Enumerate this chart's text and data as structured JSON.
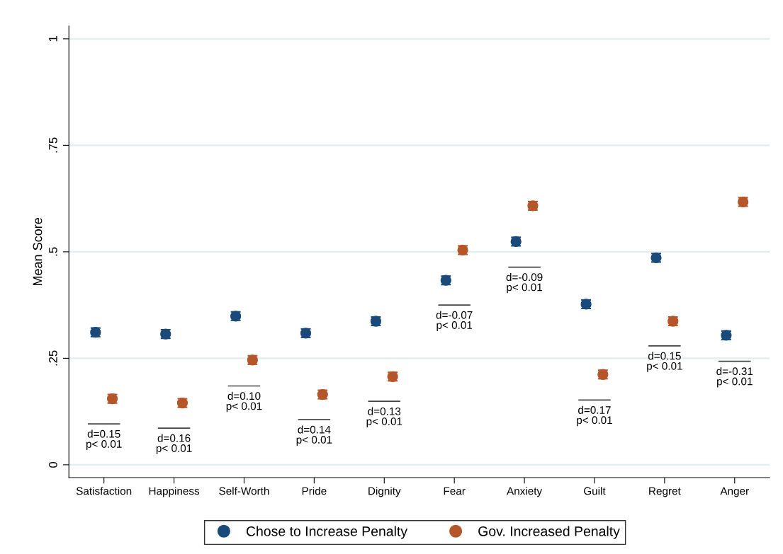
{
  "chart_data": {
    "type": "scatter",
    "ylabel": "Mean Score",
    "categories": [
      "Satisfaction",
      "Happiness",
      "Self-Worth",
      "Pride",
      "Dignity",
      "Fear",
      "Anxiety",
      "Guilt",
      "Regret",
      "Anger"
    ],
    "series": [
      {
        "name": "Chose to Increase Penalty",
        "marker": "circle",
        "color": "#1a4a7a",
        "values": [
          0.311,
          0.307,
          0.349,
          0.309,
          0.337,
          0.433,
          0.524,
          0.377,
          0.486,
          0.304
        ],
        "errors": [
          0.01,
          0.01,
          0.01,
          0.01,
          0.01,
          0.01,
          0.01,
          0.01,
          0.01,
          0.01
        ]
      },
      {
        "name": "Gov. Increased Penalty",
        "marker": "circle",
        "color": "#b5562a",
        "values": [
          0.155,
          0.145,
          0.246,
          0.165,
          0.207,
          0.504,
          0.608,
          0.212,
          0.337,
          0.617
        ],
        "errors": [
          0.01,
          0.01,
          0.01,
          0.01,
          0.01,
          0.01,
          0.01,
          0.01,
          0.01,
          0.01
        ]
      },
      {
        "type": "bar",
        "color": "#444444",
        "base": [
          0.096,
          0.086,
          0.185,
          0.106,
          0.149,
          0.375,
          0.464,
          0.152,
          0.279,
          0.243
        ],
        "values": [
          0,
          0,
          0,
          0,
          0,
          0,
          0,
          0,
          0,
          0
        ]
      }
    ],
    "ylim": [
      -0.03,
      1.03
    ],
    "yticks": [
      {
        "value": 0,
        "label": "0"
      },
      {
        "value": 0.25,
        "label": ".25"
      },
      {
        "value": 0.5,
        "label": ".5"
      },
      {
        "value": 0.75,
        "label": ".75"
      },
      {
        "value": 1,
        "label": "1"
      }
    ],
    "grid": "y",
    "legend": "bottom",
    "annotations": [
      {
        "text": "d=0.15\np< 0.01",
        "x": "Satisfaction",
        "y": 0.096
      },
      {
        "text": "d=0.16\np< 0.01",
        "x": "Happiness",
        "y": 0.086
      },
      {
        "text": "d=0.10\np< 0.01",
        "x": "Self-Worth",
        "y": 0.185
      },
      {
        "text": "d=0.14\np< 0.01",
        "x": "Pride",
        "y": 0.106
      },
      {
        "text": "d=0.13\np< 0.01",
        "x": "Dignity",
        "y": 0.149
      },
      {
        "text": "d=-0.07\np< 0.01",
        "x": "Fear",
        "y": 0.375
      },
      {
        "text": "d=-0.09\np< 0.01",
        "x": "Anxiety",
        "y": 0.464
      },
      {
        "text": "d=0.17\np< 0.01",
        "x": "Guilt",
        "y": 0.152
      },
      {
        "text": "d=0.15\np< 0.01",
        "x": "Regret",
        "y": 0.279
      },
      {
        "text": "d=-0.31\np< 0.01",
        "x": "Anger",
        "y": 0.243
      }
    ]
  }
}
